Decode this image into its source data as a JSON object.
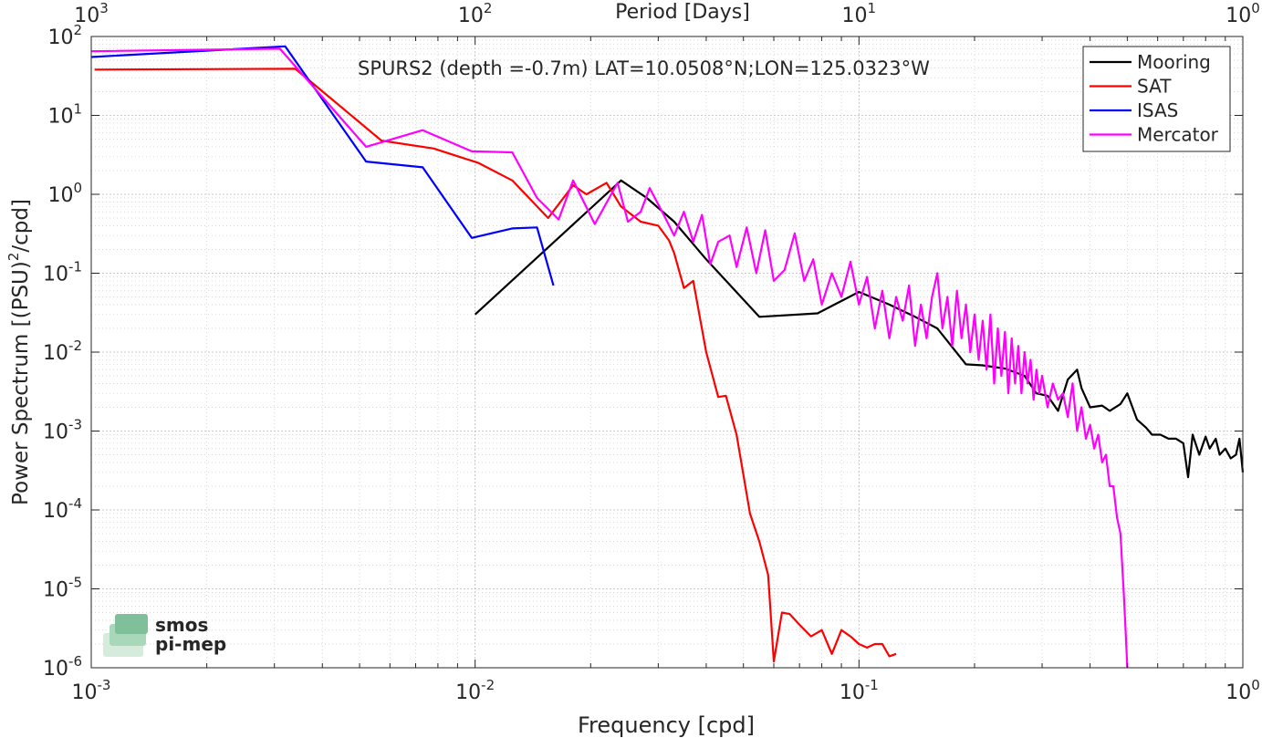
{
  "chart_data": {
    "type": "line",
    "title": "SPURS2 (depth =-0.7m) LAT=10.0508°N;LON=125.0323°W",
    "xlabel": "Frequency [cpd]",
    "ylabel_main": "Power Spectrum [(PSU)",
    "ylabel_sup": "2",
    "ylabel_tail": "/cpd]",
    "top_axis_label": "Period [Days]",
    "x_scale": "log",
    "y_scale": "log",
    "xlim": [
      0.001,
      1
    ],
    "ylim": [
      1e-06,
      100
    ],
    "grid": true,
    "legend_position": "top-right",
    "x_ticks": [
      {
        "value": 0.001,
        "base": "10",
        "exp": "-3"
      },
      {
        "value": 0.01,
        "base": "10",
        "exp": "-2"
      },
      {
        "value": 0.1,
        "base": "10",
        "exp": "-1"
      },
      {
        "value": 1,
        "base": "10",
        "exp": "0"
      }
    ],
    "top_ticks": [
      {
        "value": 0.001,
        "base": "10",
        "exp": "3"
      },
      {
        "value": 0.01,
        "base": "10",
        "exp": "2"
      },
      {
        "value": 0.1,
        "base": "10",
        "exp": "1"
      },
      {
        "value": 1,
        "base": "10",
        "exp": "0"
      }
    ],
    "y_ticks": [
      {
        "value": 100,
        "base": "10",
        "exp": "2"
      },
      {
        "value": 10,
        "base": "10",
        "exp": "1"
      },
      {
        "value": 1,
        "base": "10",
        "exp": "0"
      },
      {
        "value": 0.1,
        "base": "10",
        "exp": "-1"
      },
      {
        "value": 0.01,
        "base": "10",
        "exp": "-2"
      },
      {
        "value": 0.001,
        "base": "10",
        "exp": "-3"
      },
      {
        "value": 0.0001,
        "base": "10",
        "exp": "-4"
      },
      {
        "value": 1e-05,
        "base": "10",
        "exp": "-5"
      },
      {
        "value": 1e-06,
        "base": "10",
        "exp": "-6"
      }
    ],
    "series": [
      {
        "name": "Mooring",
        "color": "#000000",
        "x": [
          0.01,
          0.024,
          0.028,
          0.033,
          0.04,
          0.055,
          0.078,
          0.1,
          0.12,
          0.14,
          0.16,
          0.19,
          0.21,
          0.24,
          0.27,
          0.29,
          0.31,
          0.33,
          0.35,
          0.37,
          0.38,
          0.4,
          0.43,
          0.45,
          0.48,
          0.5,
          0.53,
          0.56,
          0.58,
          0.61,
          0.64,
          0.67,
          0.7,
          0.72,
          0.74,
          0.77,
          0.8,
          0.82,
          0.85,
          0.87,
          0.9,
          0.93,
          0.96,
          0.98,
          1.0
        ],
        "y": [
          0.03,
          1.5,
          0.9,
          0.45,
          0.15,
          0.028,
          0.031,
          0.058,
          0.04,
          0.028,
          0.02,
          0.007,
          0.0068,
          0.0062,
          0.005,
          0.003,
          0.0028,
          0.0018,
          0.0045,
          0.006,
          0.0035,
          0.002,
          0.0021,
          0.0018,
          0.0022,
          0.003,
          0.0014,
          0.0011,
          0.0009,
          0.0009,
          0.0008,
          0.0008,
          0.0007,
          0.00026,
          0.0009,
          0.0005,
          0.00085,
          0.0006,
          0.0008,
          0.0005,
          0.0006,
          0.00045,
          0.0005,
          0.0008,
          0.0003
        ]
      },
      {
        "name": "SAT",
        "color": "#ff0000",
        "x": [
          0.00102,
          0.0034,
          0.0057,
          0.0078,
          0.0102,
          0.0125,
          0.0155,
          0.018,
          0.0195,
          0.022,
          0.024,
          0.027,
          0.03,
          0.032,
          0.033,
          0.035,
          0.037,
          0.04,
          0.043,
          0.045,
          0.048,
          0.052,
          0.055,
          0.058,
          0.06,
          0.063,
          0.066,
          0.07,
          0.075,
          0.08,
          0.085,
          0.09,
          0.095,
          0.1,
          0.105,
          0.11,
          0.115,
          0.12,
          0.125
        ],
        "y": [
          38,
          39,
          4.8,
          3.8,
          2.5,
          1.5,
          0.5,
          1.3,
          1.0,
          1.4,
          0.7,
          0.45,
          0.4,
          0.26,
          0.18,
          0.065,
          0.08,
          0.01,
          0.0027,
          0.0028,
          0.0009,
          9e-05,
          4e-05,
          1.5e-05,
          1.2e-06,
          5e-06,
          4.8e-06,
          3.5e-06,
          2.5e-06,
          3e-06,
          1.5e-06,
          3e-06,
          2.5e-06,
          2e-06,
          1.8e-06,
          2e-06,
          2e-06,
          1.4e-06,
          1.5e-06
        ]
      },
      {
        "name": "ISAS",
        "color": "#0000ff",
        "x": [
          0.001,
          0.0032,
          0.0052,
          0.0073,
          0.0098,
          0.0125,
          0.0145,
          0.016
        ],
        "y": [
          55,
          75,
          2.6,
          2.2,
          0.28,
          0.37,
          0.38,
          0.07
        ]
      },
      {
        "name": "Mercator",
        "color": "#ff00ff",
        "x": [
          0.001,
          0.0031,
          0.0052,
          0.0073,
          0.0098,
          0.0125,
          0.0145,
          0.0165,
          0.018,
          0.0205,
          0.0235,
          0.025,
          0.027,
          0.0285,
          0.031,
          0.033,
          0.035,
          0.037,
          0.039,
          0.041,
          0.043,
          0.046,
          0.048,
          0.051,
          0.054,
          0.057,
          0.06,
          0.064,
          0.068,
          0.072,
          0.076,
          0.08,
          0.085,
          0.09,
          0.095,
          0.1,
          0.105,
          0.11,
          0.115,
          0.12,
          0.125,
          0.13,
          0.135,
          0.14,
          0.145,
          0.15,
          0.155,
          0.16,
          0.165,
          0.17,
          0.175,
          0.18,
          0.185,
          0.19,
          0.195,
          0.2,
          0.205,
          0.21,
          0.215,
          0.22,
          0.225,
          0.23,
          0.235,
          0.24,
          0.245,
          0.25,
          0.255,
          0.26,
          0.265,
          0.27,
          0.275,
          0.28,
          0.285,
          0.29,
          0.295,
          0.3,
          0.31,
          0.32,
          0.33,
          0.34,
          0.35,
          0.36,
          0.37,
          0.38,
          0.39,
          0.4,
          0.41,
          0.42,
          0.43,
          0.44,
          0.45,
          0.46,
          0.47,
          0.48,
          0.485,
          0.49,
          0.495,
          0.5
        ],
        "y": [
          65,
          70,
          4.0,
          6.5,
          3.5,
          3.4,
          0.9,
          0.48,
          1.5,
          0.42,
          1.4,
          0.45,
          0.6,
          1.2,
          0.55,
          0.3,
          0.6,
          0.25,
          0.55,
          0.13,
          0.25,
          0.3,
          0.12,
          0.38,
          0.1,
          0.35,
          0.08,
          0.11,
          0.32,
          0.08,
          0.15,
          0.04,
          0.1,
          0.05,
          0.14,
          0.04,
          0.09,
          0.02,
          0.06,
          0.015,
          0.05,
          0.025,
          0.07,
          0.012,
          0.04,
          0.015,
          0.05,
          0.1,
          0.02,
          0.05,
          0.012,
          0.06,
          0.015,
          0.04,
          0.01,
          0.03,
          0.008,
          0.025,
          0.006,
          0.03,
          0.004,
          0.02,
          0.005,
          0.018,
          0.003,
          0.015,
          0.004,
          0.012,
          0.003,
          0.01,
          0.004,
          0.008,
          0.0025,
          0.006,
          0.003,
          0.005,
          0.002,
          0.004,
          0.0025,
          0.003,
          0.0015,
          0.004,
          0.001,
          0.002,
          0.0008,
          0.0012,
          0.0006,
          0.0009,
          0.0004,
          0.0005,
          0.0002,
          0.0002,
          8e-05,
          5e-05,
          2e-05,
          8e-06,
          3e-06,
          1e-06
        ]
      }
    ]
  },
  "logo": {
    "line1": "smos",
    "line2": "pi-mep",
    "color": "#7fbf9a"
  }
}
